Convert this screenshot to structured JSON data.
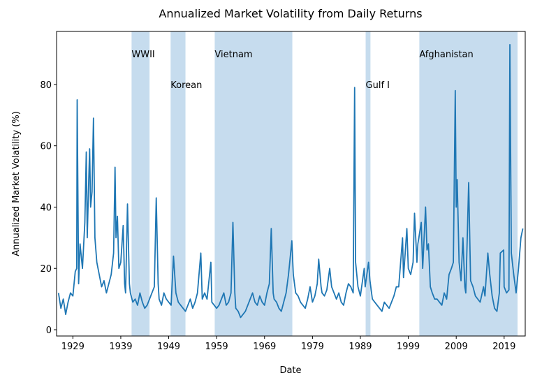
{
  "chart_data": {
    "type": "line",
    "title": "Annualized Market Volatility from Daily Returns",
    "xlabel": "Date",
    "ylabel": "Annualized Market Volatility (%)",
    "color": "#1f77b4",
    "span_color": "#c6dcee",
    "xlim": [
      1925.6,
      2023.4
    ],
    "ylim": [
      -2.05,
      97.3
    ],
    "xticks": [
      1929,
      1939,
      1949,
      1959,
      1969,
      1979,
      1989,
      1999,
      2009,
      2019
    ],
    "yticks": [
      0,
      20,
      40,
      60,
      80
    ],
    "spans": [
      {
        "label": "WWII",
        "start": 1941.25,
        "end": 1945.0,
        "y": 90
      },
      {
        "label": "Korean",
        "start": 1949.4,
        "end": 1952.5,
        "y": 80
      },
      {
        "label": "Vietnam",
        "start": 1958.6,
        "end": 1974.8,
        "y": 90
      },
      {
        "label": "Gulf I",
        "start": 1990.1,
        "end": 1991.1,
        "y": 80
      },
      {
        "label": "Afghanistan",
        "start": 2001.3,
        "end": 2021.8,
        "y": 90
      }
    ],
    "x": [
      1926.0,
      1926.5,
      1927.0,
      1927.5,
      1928.0,
      1928.5,
      1929.0,
      1929.5,
      1929.8,
      1929.9,
      1930.2,
      1930.5,
      1931.0,
      1931.5,
      1931.8,
      1932.0,
      1932.3,
      1932.5,
      1932.7,
      1933.0,
      1933.3,
      1933.6,
      1934.0,
      1934.5,
      1935.0,
      1935.5,
      1936.0,
      1936.5,
      1937.0,
      1937.5,
      1937.8,
      1938.0,
      1938.3,
      1938.6,
      1939.0,
      1939.5,
      1939.8,
      1940.0,
      1940.4,
      1940.8,
      1941.0,
      1941.5,
      1942.0,
      1942.5,
      1943.0,
      1943.5,
      1944.0,
      1944.5,
      1945.0,
      1945.5,
      1946.0,
      1946.4,
      1946.8,
      1947.0,
      1947.5,
      1948.0,
      1948.5,
      1949.0,
      1949.5,
      1950.0,
      1950.5,
      1951.0,
      1951.5,
      1952.0,
      1952.5,
      1953.0,
      1953.5,
      1954.0,
      1954.5,
      1955.0,
      1955.7,
      1956.0,
      1956.5,
      1957.0,
      1957.8,
      1958.0,
      1958.5,
      1959.0,
      1959.5,
      1960.0,
      1960.5,
      1961.0,
      1961.5,
      1962.0,
      1962.4,
      1962.8,
      1963.0,
      1963.5,
      1964.0,
      1964.5,
      1965.0,
      1965.5,
      1966.0,
      1966.5,
      1967.0,
      1967.5,
      1968.0,
      1968.5,
      1969.0,
      1969.5,
      1970.0,
      1970.4,
      1970.8,
      1971.0,
      1971.5,
      1972.0,
      1972.5,
      1973.0,
      1973.5,
      1974.0,
      1974.7,
      1975.0,
      1975.5,
      1976.0,
      1976.5,
      1977.0,
      1977.5,
      1978.0,
      1978.5,
      1979.0,
      1979.5,
      1980.0,
      1980.3,
      1980.8,
      1981.0,
      1981.5,
      1982.0,
      1982.6,
      1983.0,
      1983.5,
      1984.0,
      1984.5,
      1985.0,
      1985.5,
      1986.0,
      1986.5,
      1987.0,
      1987.5,
      1987.8,
      1988.0,
      1988.5,
      1989.0,
      1989.8,
      1990.0,
      1990.7,
      1991.0,
      1991.5,
      1992.0,
      1992.5,
      1993.0,
      1993.5,
      1994.0,
      1994.5,
      1995.0,
      1995.5,
      1996.0,
      1996.5,
      1997.0,
      1997.8,
      1998.0,
      1998.7,
      1999.0,
      1999.5,
      2000.0,
      2000.3,
      2000.8,
      2001.0,
      2001.7,
      2002.0,
      2002.6,
      2002.9,
      2003.2,
      2003.6,
      2004.0,
      2004.5,
      2005.0,
      2005.5,
      2006.0,
      2006.5,
      2007.0,
      2007.5,
      2008.0,
      2008.4,
      2008.8,
      2009.0,
      2009.2,
      2009.6,
      2010.0,
      2010.4,
      2010.8,
      2011.0,
      2011.6,
      2012.0,
      2012.5,
      2013.0,
      2013.5,
      2014.0,
      2014.7,
      2015.0,
      2015.6,
      2016.0,
      2016.5,
      2017.0,
      2017.5,
      2018.0,
      2018.2,
      2018.9,
      2019.0,
      2019.5,
      2020.0,
      2020.2,
      2020.5,
      2021.0,
      2021.5,
      2022.0,
      2022.5,
      2022.9
    ],
    "values": [
      12,
      7,
      10,
      5,
      9,
      12,
      11,
      19,
      20,
      75,
      15,
      28,
      20,
      35,
      58,
      30,
      48,
      59,
      40,
      45,
      69,
      30,
      22,
      18,
      14,
      16,
      12,
      15,
      18,
      25,
      53,
      30,
      37,
      20,
      22,
      34,
      15,
      12,
      41,
      15,
      12,
      9,
      10,
      8,
      12,
      9,
      7,
      8,
      10,
      12,
      14,
      43,
      15,
      10,
      8,
      12,
      10,
      9,
      8,
      24,
      12,
      9,
      8,
      7,
      6,
      8,
      10,
      7,
      9,
      12,
      25,
      10,
      12,
      10,
      22,
      9,
      8,
      7,
      8,
      10,
      12,
      8,
      9,
      12,
      35,
      12,
      7,
      6,
      4,
      5,
      6,
      8,
      10,
      12,
      9,
      8,
      11,
      9,
      8,
      12,
      15,
      33,
      12,
      10,
      9,
      7,
      6,
      9,
      12,
      18,
      29,
      18,
      12,
      11,
      9,
      8,
      7,
      10,
      14,
      9,
      11,
      15,
      23,
      14,
      12,
      11,
      13,
      20,
      14,
      12,
      10,
      12,
      9,
      8,
      12,
      15,
      14,
      12,
      79,
      22,
      14,
      11,
      20,
      14,
      22,
      16,
      10,
      9,
      8,
      7,
      6,
      9,
      8,
      7,
      9,
      11,
      14,
      14,
      30,
      17,
      33,
      20,
      18,
      22,
      38,
      22,
      28,
      35,
      20,
      40,
      26,
      28,
      14,
      12,
      10,
      10,
      9,
      8,
      12,
      10,
      18,
      20,
      22,
      78,
      40,
      49,
      22,
      16,
      30,
      14,
      12,
      48,
      16,
      14,
      11,
      10,
      9,
      14,
      11,
      25,
      18,
      11,
      7,
      6,
      12,
      25,
      26,
      14,
      12,
      13,
      93,
      25,
      18,
      12,
      20,
      30,
      33
    ]
  }
}
